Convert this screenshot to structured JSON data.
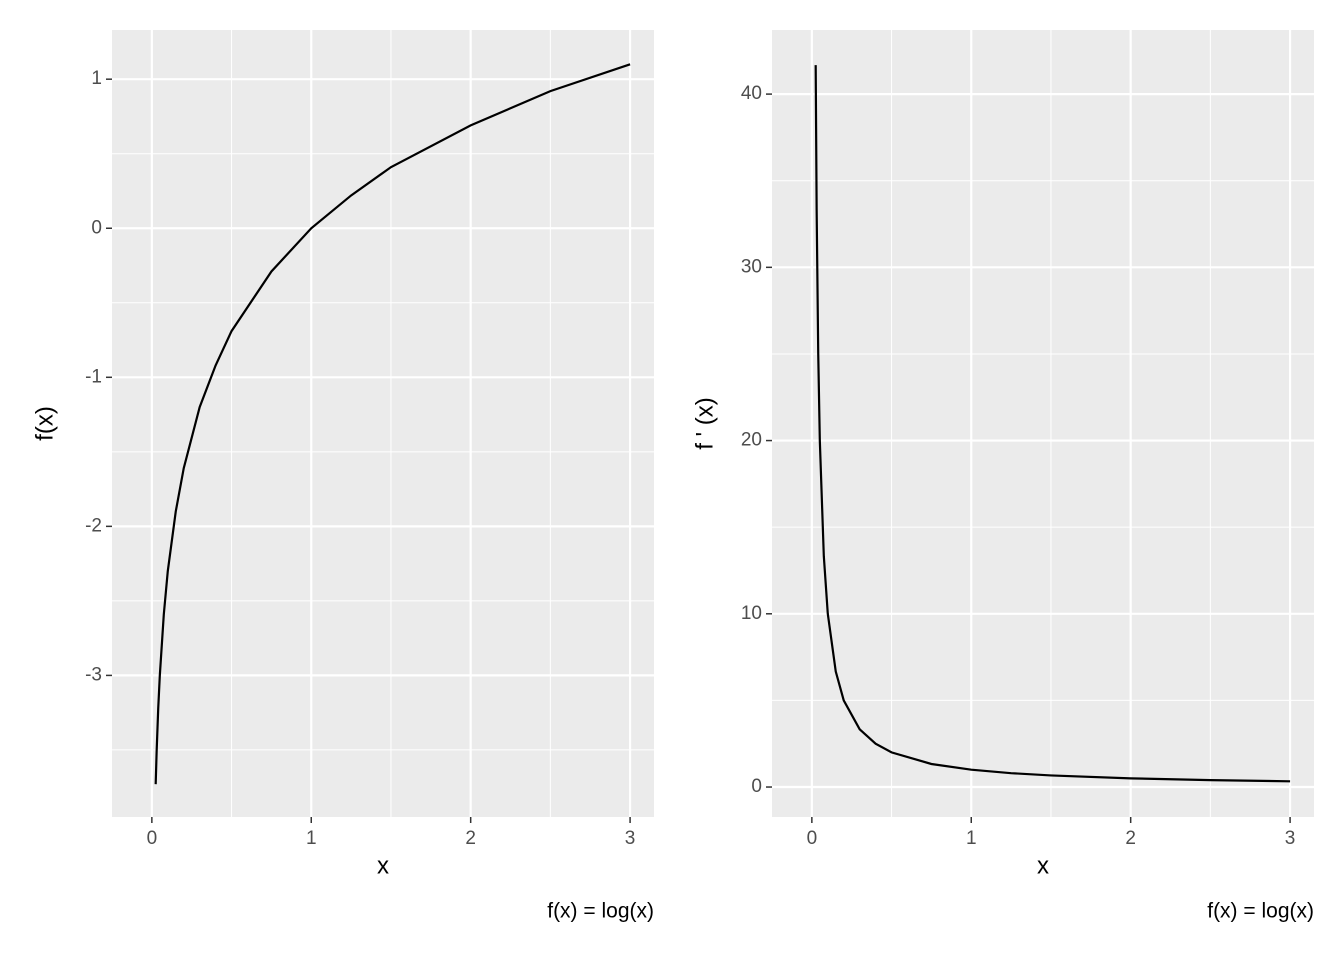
{
  "chart_data": [
    {
      "type": "line",
      "caption": "f(x) = log(x)",
      "xlabel": "x",
      "ylabel": "f(x)",
      "x": [
        0.024,
        0.03,
        0.04,
        0.05,
        0.075,
        0.1,
        0.15,
        0.2,
        0.3,
        0.4,
        0.5,
        0.75,
        1,
        1.25,
        1.5,
        2,
        2.5,
        3
      ],
      "values": [
        -3.73,
        -3.51,
        -3.22,
        -3.0,
        -2.59,
        -2.3,
        -1.9,
        -1.61,
        -1.2,
        -0.92,
        -0.69,
        -0.29,
        0,
        0.22,
        0.41,
        0.69,
        0.92,
        1.1
      ],
      "color": "#000000",
      "xlim": [
        -0.25,
        3.15
      ],
      "xticks": [
        0,
        1,
        2,
        3
      ],
      "x_minor_ticks": [
        0.5,
        1.5,
        2.5
      ],
      "ylim": [
        -3.95,
        1.33
      ],
      "yticks": [
        -3,
        -2,
        -1,
        0,
        1
      ],
      "y_minor_ticks": [
        -3.5,
        -2.5,
        -1.5,
        -0.5,
        0.5
      ],
      "grid": true
    },
    {
      "type": "line",
      "caption": "f(x) = log(x)",
      "xlabel": "x",
      "ylabel": "f ' (x)",
      "x": [
        0.024,
        0.03,
        0.04,
        0.05,
        0.075,
        0.1,
        0.15,
        0.2,
        0.3,
        0.4,
        0.5,
        0.75,
        1,
        1.25,
        1.5,
        2,
        2.5,
        3
      ],
      "values": [
        41.67,
        33.33,
        25,
        20,
        13.33,
        10,
        6.67,
        5,
        3.33,
        2.5,
        2,
        1.33,
        1,
        0.8,
        0.67,
        0.5,
        0.4,
        0.33
      ],
      "color": "#000000",
      "xlim": [
        -0.25,
        3.15
      ],
      "xticks": [
        0,
        1,
        2,
        3
      ],
      "x_minor_ticks": [
        0.5,
        1.5,
        2.5
      ],
      "ylim": [
        -1.73,
        43.7
      ],
      "yticks": [
        0,
        10,
        20,
        30,
        40
      ],
      "y_minor_ticks": [
        5,
        15,
        25,
        35
      ],
      "grid": true
    }
  ]
}
